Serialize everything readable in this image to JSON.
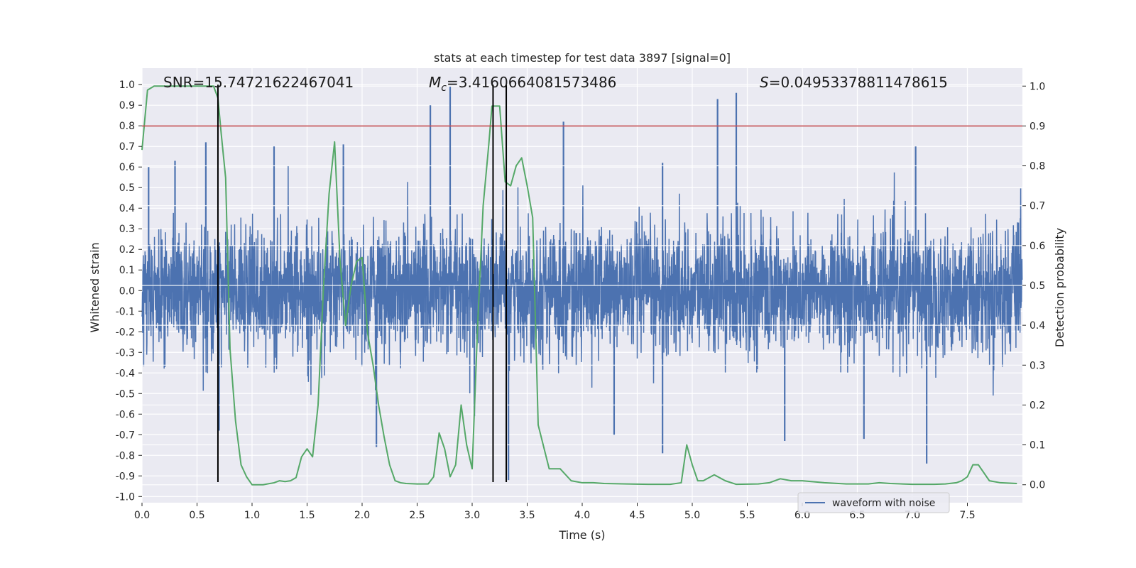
{
  "chart_data": {
    "type": "line",
    "title": "stats at each timestep for test data 3897 [signal=0]",
    "xlabel": "Time (s)",
    "ylabel": "Whitened strain",
    "y2label": "Detection probability",
    "xlim": [
      0,
      8.0
    ],
    "ylim": [
      -1.03,
      1.08
    ],
    "y2lim": [
      -0.045,
      1.045
    ],
    "xticks": [
      "0.0",
      "0.5",
      "1.0",
      "1.5",
      "2.0",
      "2.5",
      "3.0",
      "3.5",
      "4.0",
      "4.5",
      "5.0",
      "5.5",
      "6.0",
      "6.5",
      "7.0",
      "7.5"
    ],
    "yticks": [
      "1.0",
      "0.9",
      "0.8",
      "0.7",
      "0.6",
      "0.5",
      "0.4",
      "0.3",
      "0.2",
      "0.1",
      "0.0",
      "-0.1",
      "-0.2",
      "-0.3",
      "-0.4",
      "-0.5",
      "-0.6",
      "-0.7",
      "-0.8",
      "-0.9",
      "-1.0"
    ],
    "y2ticks": [
      "1.0",
      "0.9",
      "0.8",
      "0.7",
      "0.6",
      "0.5",
      "0.4",
      "0.3",
      "0.2",
      "0.1",
      "0.0"
    ],
    "annotations": {
      "snr": "SNR=15.74721622467041",
      "mc_symbol": "M",
      "mc_sub": "c",
      "mc_value": "=3.4160664081573486",
      "s_symbol": "S",
      "s_value": "=0.04953378811478615"
    },
    "legend": {
      "label": "waveform with noise",
      "placement": "lower-right"
    },
    "grid": true,
    "threshold": 0.9,
    "vlines": [
      0.69,
      3.19,
      3.31
    ],
    "series": [
      {
        "name": "waveform with noise",
        "color": "#4c72b0",
        "noise_sigma": 0.15,
        "spikes": [
          {
            "x": 0.58,
            "y": 0.72
          },
          {
            "x": 0.06,
            "y": 0.6
          },
          {
            "x": 0.3,
            "y": 0.63
          },
          {
            "x": 0.7,
            "y": -0.68
          },
          {
            "x": 1.2,
            "y": 0.7
          },
          {
            "x": 1.83,
            "y": 0.71
          },
          {
            "x": 2.13,
            "y": -0.76
          },
          {
            "x": 2.62,
            "y": 0.9
          },
          {
            "x": 2.8,
            "y": 0.99
          },
          {
            "x": 3.02,
            "y": -0.61
          },
          {
            "x": 3.33,
            "y": -0.92
          },
          {
            "x": 3.83,
            "y": 0.82
          },
          {
            "x": 4.29,
            "y": -0.7
          },
          {
            "x": 4.73,
            "y": -0.79
          },
          {
            "x": 4.73,
            "y": 0.62
          },
          {
            "x": 5.23,
            "y": 0.93
          },
          {
            "x": 5.4,
            "y": 0.96
          },
          {
            "x": 5.84,
            "y": -0.73
          },
          {
            "x": 6.56,
            "y": -0.72
          },
          {
            "x": 7.03,
            "y": 0.7
          },
          {
            "x": 7.13,
            "y": -0.84
          }
        ]
      },
      {
        "name": "",
        "color": "#55a868",
        "axis": "right",
        "x": [
          0.0,
          0.05,
          0.11,
          0.2,
          0.3,
          0.4,
          0.5,
          0.55,
          0.6,
          0.65,
          0.69,
          0.72,
          0.76,
          0.8,
          0.85,
          0.9,
          0.95,
          1.0,
          1.1,
          1.2,
          1.25,
          1.3,
          1.35,
          1.4,
          1.45,
          1.5,
          1.55,
          1.6,
          1.65,
          1.7,
          1.75,
          1.8,
          1.85,
          1.9,
          1.95,
          2.0,
          2.05,
          2.1,
          2.15,
          2.2,
          2.25,
          2.3,
          2.35,
          2.4,
          2.5,
          2.6,
          2.65,
          2.7,
          2.75,
          2.8,
          2.85,
          2.9,
          2.95,
          3.0,
          3.05,
          3.1,
          3.15,
          3.18,
          3.2,
          3.25,
          3.3,
          3.35,
          3.4,
          3.45,
          3.5,
          3.55,
          3.6,
          3.7,
          3.8,
          3.9,
          4.0,
          4.1,
          4.2,
          4.4,
          4.6,
          4.8,
          4.9,
          4.95,
          5.0,
          5.05,
          5.1,
          5.2,
          5.3,
          5.4,
          5.6,
          5.7,
          5.8,
          5.9,
          6.0,
          6.2,
          6.4,
          6.6,
          6.7,
          6.8,
          7.0,
          7.2,
          7.3,
          7.4,
          7.45,
          7.5,
          7.55,
          7.6,
          7.65,
          7.7,
          7.8,
          7.95
        ],
        "y": [
          0.84,
          0.99,
          1.0,
          1.0,
          1.0,
          1.0,
          1.0,
          1.0,
          1.0,
          1.0,
          0.97,
          0.88,
          0.77,
          0.34,
          0.16,
          0.05,
          0.02,
          0.0,
          0.0,
          0.005,
          0.01,
          0.008,
          0.01,
          0.018,
          0.07,
          0.09,
          0.07,
          0.2,
          0.5,
          0.73,
          0.86,
          0.56,
          0.4,
          0.5,
          0.56,
          0.57,
          0.38,
          0.3,
          0.2,
          0.12,
          0.05,
          0.01,
          0.005,
          0.003,
          0.002,
          0.002,
          0.02,
          0.13,
          0.09,
          0.02,
          0.05,
          0.2,
          0.1,
          0.04,
          0.4,
          0.7,
          0.85,
          0.95,
          0.95,
          0.95,
          0.76,
          0.75,
          0.8,
          0.82,
          0.75,
          0.67,
          0.15,
          0.04,
          0.04,
          0.01,
          0.005,
          0.005,
          0.003,
          0.002,
          0.001,
          0.001,
          0.005,
          0.1,
          0.05,
          0.01,
          0.01,
          0.025,
          0.01,
          0.001,
          0.002,
          0.005,
          0.015,
          0.01,
          0.01,
          0.005,
          0.002,
          0.002,
          0.005,
          0.003,
          0.001,
          0.001,
          0.002,
          0.005,
          0.01,
          0.02,
          0.05,
          0.05,
          0.03,
          0.01,
          0.005,
          0.003
        ]
      }
    ]
  }
}
